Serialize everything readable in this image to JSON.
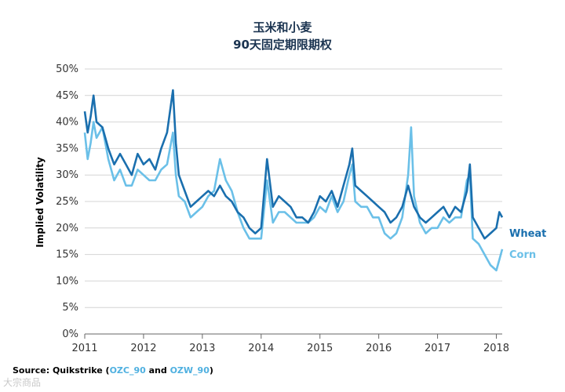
{
  "chart_data": {
    "type": "line",
    "title": [
      "玉米和小麦",
      "90天固定期限期权"
    ],
    "xlabel": "",
    "ylabel": "Implied Volatility",
    "x_ticks": [
      "2011",
      "2012",
      "2013",
      "2014",
      "2015",
      "2016",
      "2017",
      "2018"
    ],
    "y_ticks": [
      "0%",
      "5%",
      "10%",
      "15%",
      "20%",
      "25%",
      "30%",
      "35%",
      "40%",
      "45%",
      "50%"
    ],
    "ylim": [
      0,
      50
    ],
    "xlim": [
      2011.0,
      2018.1
    ],
    "grid": "horizontal",
    "legend_position": "right-end-of-lines",
    "series": [
      {
        "name": "Wheat",
        "color": "#1a6fae",
        "x": [
          2011.0,
          2011.05,
          2011.1,
          2011.15,
          2011.2,
          2011.3,
          2011.4,
          2011.5,
          2011.6,
          2011.7,
          2011.8,
          2011.9,
          2012.0,
          2012.1,
          2012.2,
          2012.3,
          2012.4,
          2012.5,
          2012.55,
          2012.6,
          2012.7,
          2012.8,
          2012.9,
          2013.0,
          2013.1,
          2013.2,
          2013.3,
          2013.4,
          2013.5,
          2013.6,
          2013.7,
          2013.8,
          2013.9,
          2014.0,
          2014.1,
          2014.2,
          2014.3,
          2014.4,
          2014.5,
          2014.6,
          2014.7,
          2014.8,
          2014.9,
          2015.0,
          2015.1,
          2015.2,
          2015.3,
          2015.4,
          2015.5,
          2015.55,
          2015.6,
          2015.7,
          2015.8,
          2015.9,
          2016.0,
          2016.1,
          2016.2,
          2016.3,
          2016.4,
          2016.5,
          2016.6,
          2016.7,
          2016.8,
          2016.9,
          2017.0,
          2017.1,
          2017.2,
          2017.3,
          2017.4,
          2017.5,
          2017.55,
          2017.6,
          2017.7,
          2017.8,
          2017.9,
          2018.0,
          2018.05,
          2018.1
        ],
        "values": [
          42,
          38,
          41,
          45,
          40,
          39,
          35,
          32,
          34,
          32,
          30,
          34,
          32,
          33,
          31,
          35,
          38,
          46,
          36,
          30,
          27,
          24,
          25,
          26,
          27,
          26,
          28,
          26,
          25,
          23,
          22,
          20,
          19,
          20,
          33,
          24,
          26,
          25,
          24,
          22,
          22,
          21,
          23,
          26,
          25,
          27,
          24,
          28,
          32,
          35,
          28,
          27,
          26,
          25,
          24,
          23,
          21,
          22,
          24,
          28,
          24,
          22,
          21,
          22,
          23,
          24,
          22,
          24,
          23,
          27,
          32,
          22,
          20,
          18,
          19,
          20,
          23,
          22
        ]
      },
      {
        "name": "Corn",
        "color": "#6bc0e8",
        "x": [
          2011.0,
          2011.05,
          2011.1,
          2011.15,
          2011.2,
          2011.3,
          2011.4,
          2011.5,
          2011.6,
          2011.7,
          2011.8,
          2011.9,
          2012.0,
          2012.1,
          2012.2,
          2012.3,
          2012.4,
          2012.5,
          2012.55,
          2012.6,
          2012.7,
          2012.8,
          2012.9,
          2013.0,
          2013.1,
          2013.2,
          2013.3,
          2013.4,
          2013.5,
          2013.6,
          2013.7,
          2013.8,
          2013.9,
          2014.0,
          2014.1,
          2014.2,
          2014.3,
          2014.4,
          2014.5,
          2014.6,
          2014.7,
          2014.8,
          2014.9,
          2015.0,
          2015.1,
          2015.2,
          2015.3,
          2015.4,
          2015.5,
          2015.55,
          2015.6,
          2015.7,
          2015.8,
          2015.9,
          2016.0,
          2016.1,
          2016.2,
          2016.3,
          2016.4,
          2016.5,
          2016.55,
          2016.6,
          2016.7,
          2016.8,
          2016.9,
          2017.0,
          2017.1,
          2017.2,
          2017.3,
          2017.4,
          2017.5,
          2017.55,
          2017.6,
          2017.7,
          2017.8,
          2017.9,
          2018.0,
          2018.05,
          2018.1
        ],
        "values": [
          38,
          33,
          36,
          40,
          37,
          39,
          33,
          29,
          31,
          28,
          28,
          31,
          30,
          29,
          29,
          31,
          32,
          38,
          30,
          26,
          25,
          22,
          23,
          24,
          26,
          27,
          33,
          29,
          27,
          23,
          20,
          18,
          18,
          18,
          29,
          21,
          23,
          23,
          22,
          21,
          21,
          21,
          22,
          24,
          23,
          26,
          23,
          25,
          30,
          32,
          25,
          24,
          24,
          22,
          22,
          19,
          18,
          19,
          22,
          30,
          39,
          26,
          21,
          19,
          20,
          20,
          22,
          21,
          22,
          22,
          29,
          30,
          18,
          17,
          15,
          13,
          12,
          14,
          16
        ]
      }
    ]
  },
  "source": {
    "prefix": "Source: Quikstrike (",
    "code1": "OZC_90",
    "middle": " and ",
    "code2": "OZW_90",
    "suffix": ")"
  },
  "watermark": "大宗商品"
}
